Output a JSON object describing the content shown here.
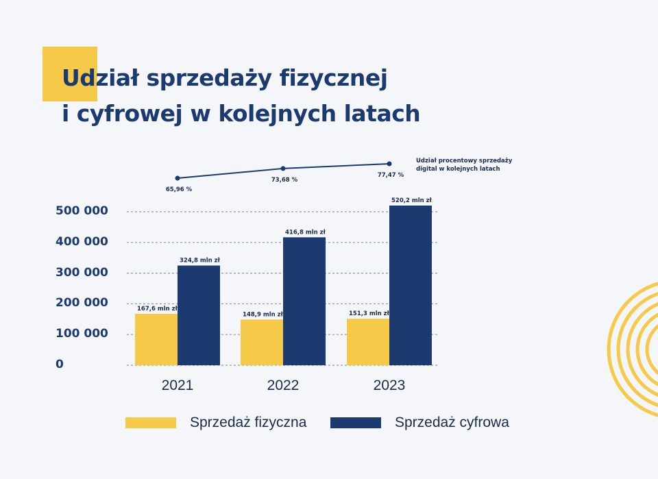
{
  "colors": {
    "background": "#f4f6f9",
    "accent_yellow": "#f7c948",
    "navy": "#1b3a6f",
    "dark_text": "#1a2a4a",
    "grid": "#8a97b0"
  },
  "title": {
    "line1": "Udział sprzedaży fizycznej",
    "line2": "i cyfrowej w kolejnych latach"
  },
  "line_caption": {
    "line1": "Udział procentowy sprzedaży",
    "line2": "digital w kolejnych latach"
  },
  "legend": [
    {
      "label": "Sprzedaż fizyczna",
      "color": "#f7c948"
    },
    {
      "label": "Sprzedaż cyfrowa",
      "color": "#1b3a6f"
    }
  ],
  "chart_data": {
    "type": "bar",
    "title": "Udział sprzedaży fizycznej i cyfrowej w kolejnych latach",
    "categories": [
      "2021",
      "2022",
      "2023"
    ],
    "series": [
      {
        "name": "Sprzedaż fizyczna",
        "values": [
          167600,
          148900,
          151300
        ],
        "labels": [
          "167,6 mln zł",
          "148,9 mln zł",
          "151,3 mln zł"
        ],
        "color": "#f7c948"
      },
      {
        "name": "Sprzedaż cyfrowa",
        "values": [
          324800,
          416800,
          520200
        ],
        "labels": [
          "324,8 mln zł",
          "416,8 mln zł",
          "520,2 mln zł"
        ],
        "color": "#1b3a6f"
      }
    ],
    "line_series": {
      "name": "Udział procentowy sprzedaży digital w kolejnych latach",
      "values": [
        65.96,
        73.68,
        77.47
      ],
      "labels": [
        "65,96 %",
        "73,68 %",
        "77,47 %"
      ]
    },
    "yticks": [
      "0",
      "100 000",
      "200 000",
      "300 000",
      "400 000",
      "500 000"
    ],
    "ylim": [
      0,
      500000
    ],
    "grid": true,
    "legend_position": "bottom"
  }
}
